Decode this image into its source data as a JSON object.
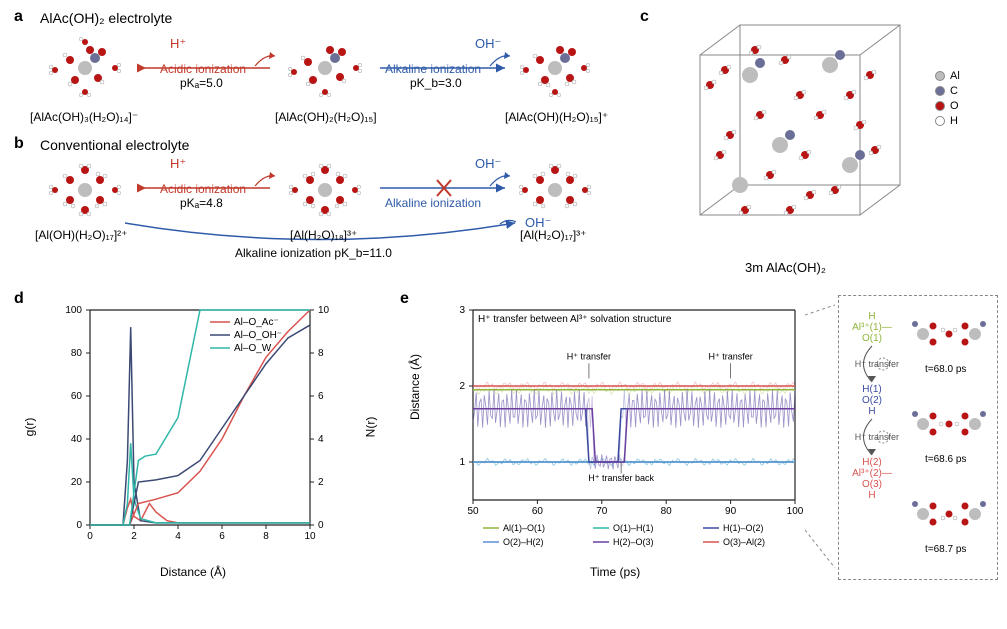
{
  "panel_a": {
    "label": "a",
    "title": "AlAc(OH)₂ electrolyte",
    "left_species": "[AlAc(OH)₃(H₂O)₁₄]⁻",
    "center_species": "[AlAc(OH)₂(H₂O)₁₅]",
    "right_species": "[AlAc(OH)(H₂O)₁₅]⁺",
    "acidic_label": "Acidic ionization",
    "acidic_pka": "pKₐ=5.0",
    "alkaline_label": "Alkaline ionization",
    "alkaline_pkb": "pK_b=3.0",
    "h_plus": "H⁺",
    "oh_minus": "OH⁻"
  },
  "panel_b": {
    "label": "b",
    "title": "Conventional electrolyte",
    "left_species": "[Al(OH)(H₂O)₁₇]²⁺",
    "center_species": "[Al(H₂O)₁₈]³⁺",
    "right_species": "[Al(H₂O)₁₇]³⁺",
    "acidic_label": "Acidic ionization",
    "acidic_pka": "pKₐ=4.8",
    "alkaline_label": "Alkaline ionization",
    "alkaline_pkb": "Alkaline ionization pK_b=11.0",
    "h_plus": "H⁺",
    "oh_minus": "OH⁻"
  },
  "panel_c": {
    "label": "c",
    "caption": "3m AlAc(OH)₂",
    "atoms": {
      "Al": "#bdbdbd",
      "C": "#6b6f97",
      "O": "#b81414",
      "H": "#ffffff"
    }
  },
  "panel_d": {
    "label": "d",
    "xlabel": "Distance (Å)",
    "ylabel_left": "g(r)",
    "ylabel_right": "N(r)",
    "xlim": [
      0,
      10
    ],
    "ylim_left": [
      0,
      100
    ],
    "ylim_right": [
      0,
      10
    ],
    "xtick_step": 2,
    "ytick_left_step": 20,
    "ytick_right_step": 2,
    "legend": [
      {
        "name": "Al–O_Ac⁻",
        "color": "#d9534f"
      },
      {
        "name": "Al–O_OH⁻",
        "color": "#3b4a74"
      },
      {
        "name": "Al–O_W",
        "color": "#2fb8a8"
      }
    ],
    "series_gr": {
      "Al-O_Ac": {
        "x": [
          0,
          1.5,
          1.7,
          1.85,
          2.0,
          2.3,
          2.7,
          3.0,
          3.5,
          4,
          5,
          6,
          7,
          8,
          9,
          10
        ],
        "y": [
          0,
          0,
          8,
          12,
          4,
          2,
          10,
          6,
          2,
          1,
          1,
          1,
          1,
          1,
          1,
          1
        ]
      },
      "Al-O_OH": {
        "x": [
          0,
          1.5,
          1.7,
          1.85,
          2.0,
          2.3,
          3,
          4,
          5,
          6,
          7,
          8,
          9,
          10
        ],
        "y": [
          0,
          0,
          30,
          92,
          20,
          2,
          1,
          1,
          1,
          1,
          1,
          1,
          1,
          1
        ]
      },
      "Al-O_W": {
        "x": [
          0,
          1.5,
          1.7,
          1.85,
          2.0,
          2.3,
          3,
          4,
          5,
          6,
          7,
          8,
          9,
          10
        ],
        "y": [
          0,
          0,
          10,
          38,
          12,
          3,
          1,
          1,
          1,
          1,
          1,
          1,
          1,
          1
        ]
      }
    },
    "series_Nr": {
      "Al-O_Ac": {
        "x": [
          0,
          1.8,
          2.2,
          3,
          4,
          5,
          6,
          7,
          8,
          9,
          10
        ],
        "y": [
          0,
          0,
          1,
          1.2,
          1.5,
          2.5,
          4,
          6,
          7.8,
          9,
          10
        ]
      },
      "Al-O_OH": {
        "x": [
          0,
          1.8,
          2.2,
          3,
          4,
          5,
          6,
          7,
          8,
          9,
          10
        ],
        "y": [
          0,
          0,
          2,
          2.1,
          2.3,
          3,
          4.5,
          6,
          7.5,
          8.7,
          9.3
        ]
      },
      "Al-O_W": {
        "x": [
          0,
          1.8,
          2.2,
          2.5,
          3,
          4,
          5,
          6,
          7,
          8,
          9,
          10
        ],
        "y": [
          0,
          0,
          3,
          3.2,
          3.3,
          5,
          10,
          10,
          10,
          10,
          10,
          10
        ]
      }
    }
  },
  "panel_e": {
    "label": "e",
    "xlabel": "Time (ps)",
    "ylabel": "Distance (Å)",
    "xlim": [
      50,
      100
    ],
    "ylim": [
      0.5,
      3
    ],
    "xtick_step": 10,
    "ytick_step": 1,
    "title_note": "H⁺ transfer between Al³⁺ solvation structure",
    "annotations": [
      "H⁺ transfer",
      "H⁺ transfer",
      "H⁺ transfer back"
    ],
    "legend": [
      {
        "name": "Al(1)–O(1)",
        "color": "#8fb53a"
      },
      {
        "name": "O(1)–H(1)",
        "color": "#2fb8a8"
      },
      {
        "name": "H(1)–O(2)",
        "color": "#3b4aa0"
      },
      {
        "name": "O(2)–H(2)",
        "color": "#5a8fd6"
      },
      {
        "name": "H(2)–O(3)",
        "color": "#6a3fa0"
      },
      {
        "name": "O(3)–Al(2)",
        "color": "#d9534f"
      }
    ],
    "scheme_labels": {
      "top": "Al³⁺(1)—O(1)",
      "h_top": "H",
      "transfer1": "H⁺ transfer",
      "mid": "H(1)\nO(2)\nH",
      "transfer2": "H⁺ transfer",
      "bot": "Al³⁺(2)—O(3)",
      "h_bot": "H(2)"
    },
    "snapshots": [
      "t=68.0 ps",
      "t=68.6 ps",
      "t=68.7 ps"
    ]
  },
  "colors": {
    "red": "#c0392b",
    "blue": "#2e5aa8",
    "teal": "#2fb8a8",
    "navy": "#3b4a74",
    "green": "#8fb53a",
    "purple": "#6a3fa0",
    "lightblue": "#5a8fd6",
    "axis": "#222222"
  }
}
